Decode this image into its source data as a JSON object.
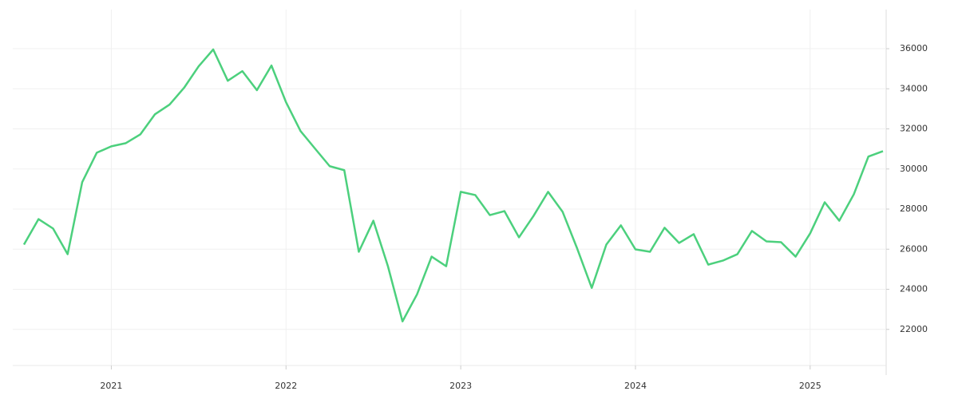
{
  "chart_data": {
    "type": "line",
    "categories": [
      null,
      null,
      null,
      null,
      null,
      null,
      "2021",
      null,
      null,
      null,
      null,
      null,
      null,
      null,
      null,
      null,
      null,
      null,
      "2022",
      null,
      null,
      null,
      null,
      null,
      null,
      null,
      null,
      null,
      null,
      null,
      "2023",
      null,
      null,
      null,
      null,
      null,
      null,
      null,
      null,
      null,
      null,
      null,
      "2024",
      null,
      null,
      null,
      null,
      null,
      null,
      null,
      null,
      null,
      null,
      null,
      "2025",
      null,
      null,
      null,
      null,
      null
    ],
    "series": [
      {
        "color": "#4cd07d",
        "values": [
          26230,
          27500,
          27030,
          25750,
          29340,
          30810,
          31130,
          31290,
          31730,
          32730,
          33210,
          34050,
          35120,
          35960,
          34400,
          34880,
          33930,
          35160,
          33330,
          31890,
          31010,
          30140,
          29940,
          25870,
          27420,
          25150,
          22400,
          23750,
          25630,
          25150,
          28860,
          28700,
          27700,
          27900,
          26590,
          27660,
          28860,
          27860,
          26030,
          24070,
          26230,
          27190,
          25990,
          25870,
          27070,
          26310,
          26750,
          25230,
          25430,
          25750,
          26910,
          26390,
          26350,
          25630,
          26790,
          28340,
          27420,
          28740,
          30620,
          30890
        ]
      }
    ],
    "ylim": [
      20200,
      37950
    ],
    "yticks": [
      22000,
      24000,
      26000,
      28000,
      30000,
      32000,
      34000,
      36000
    ],
    "grid": true
  }
}
